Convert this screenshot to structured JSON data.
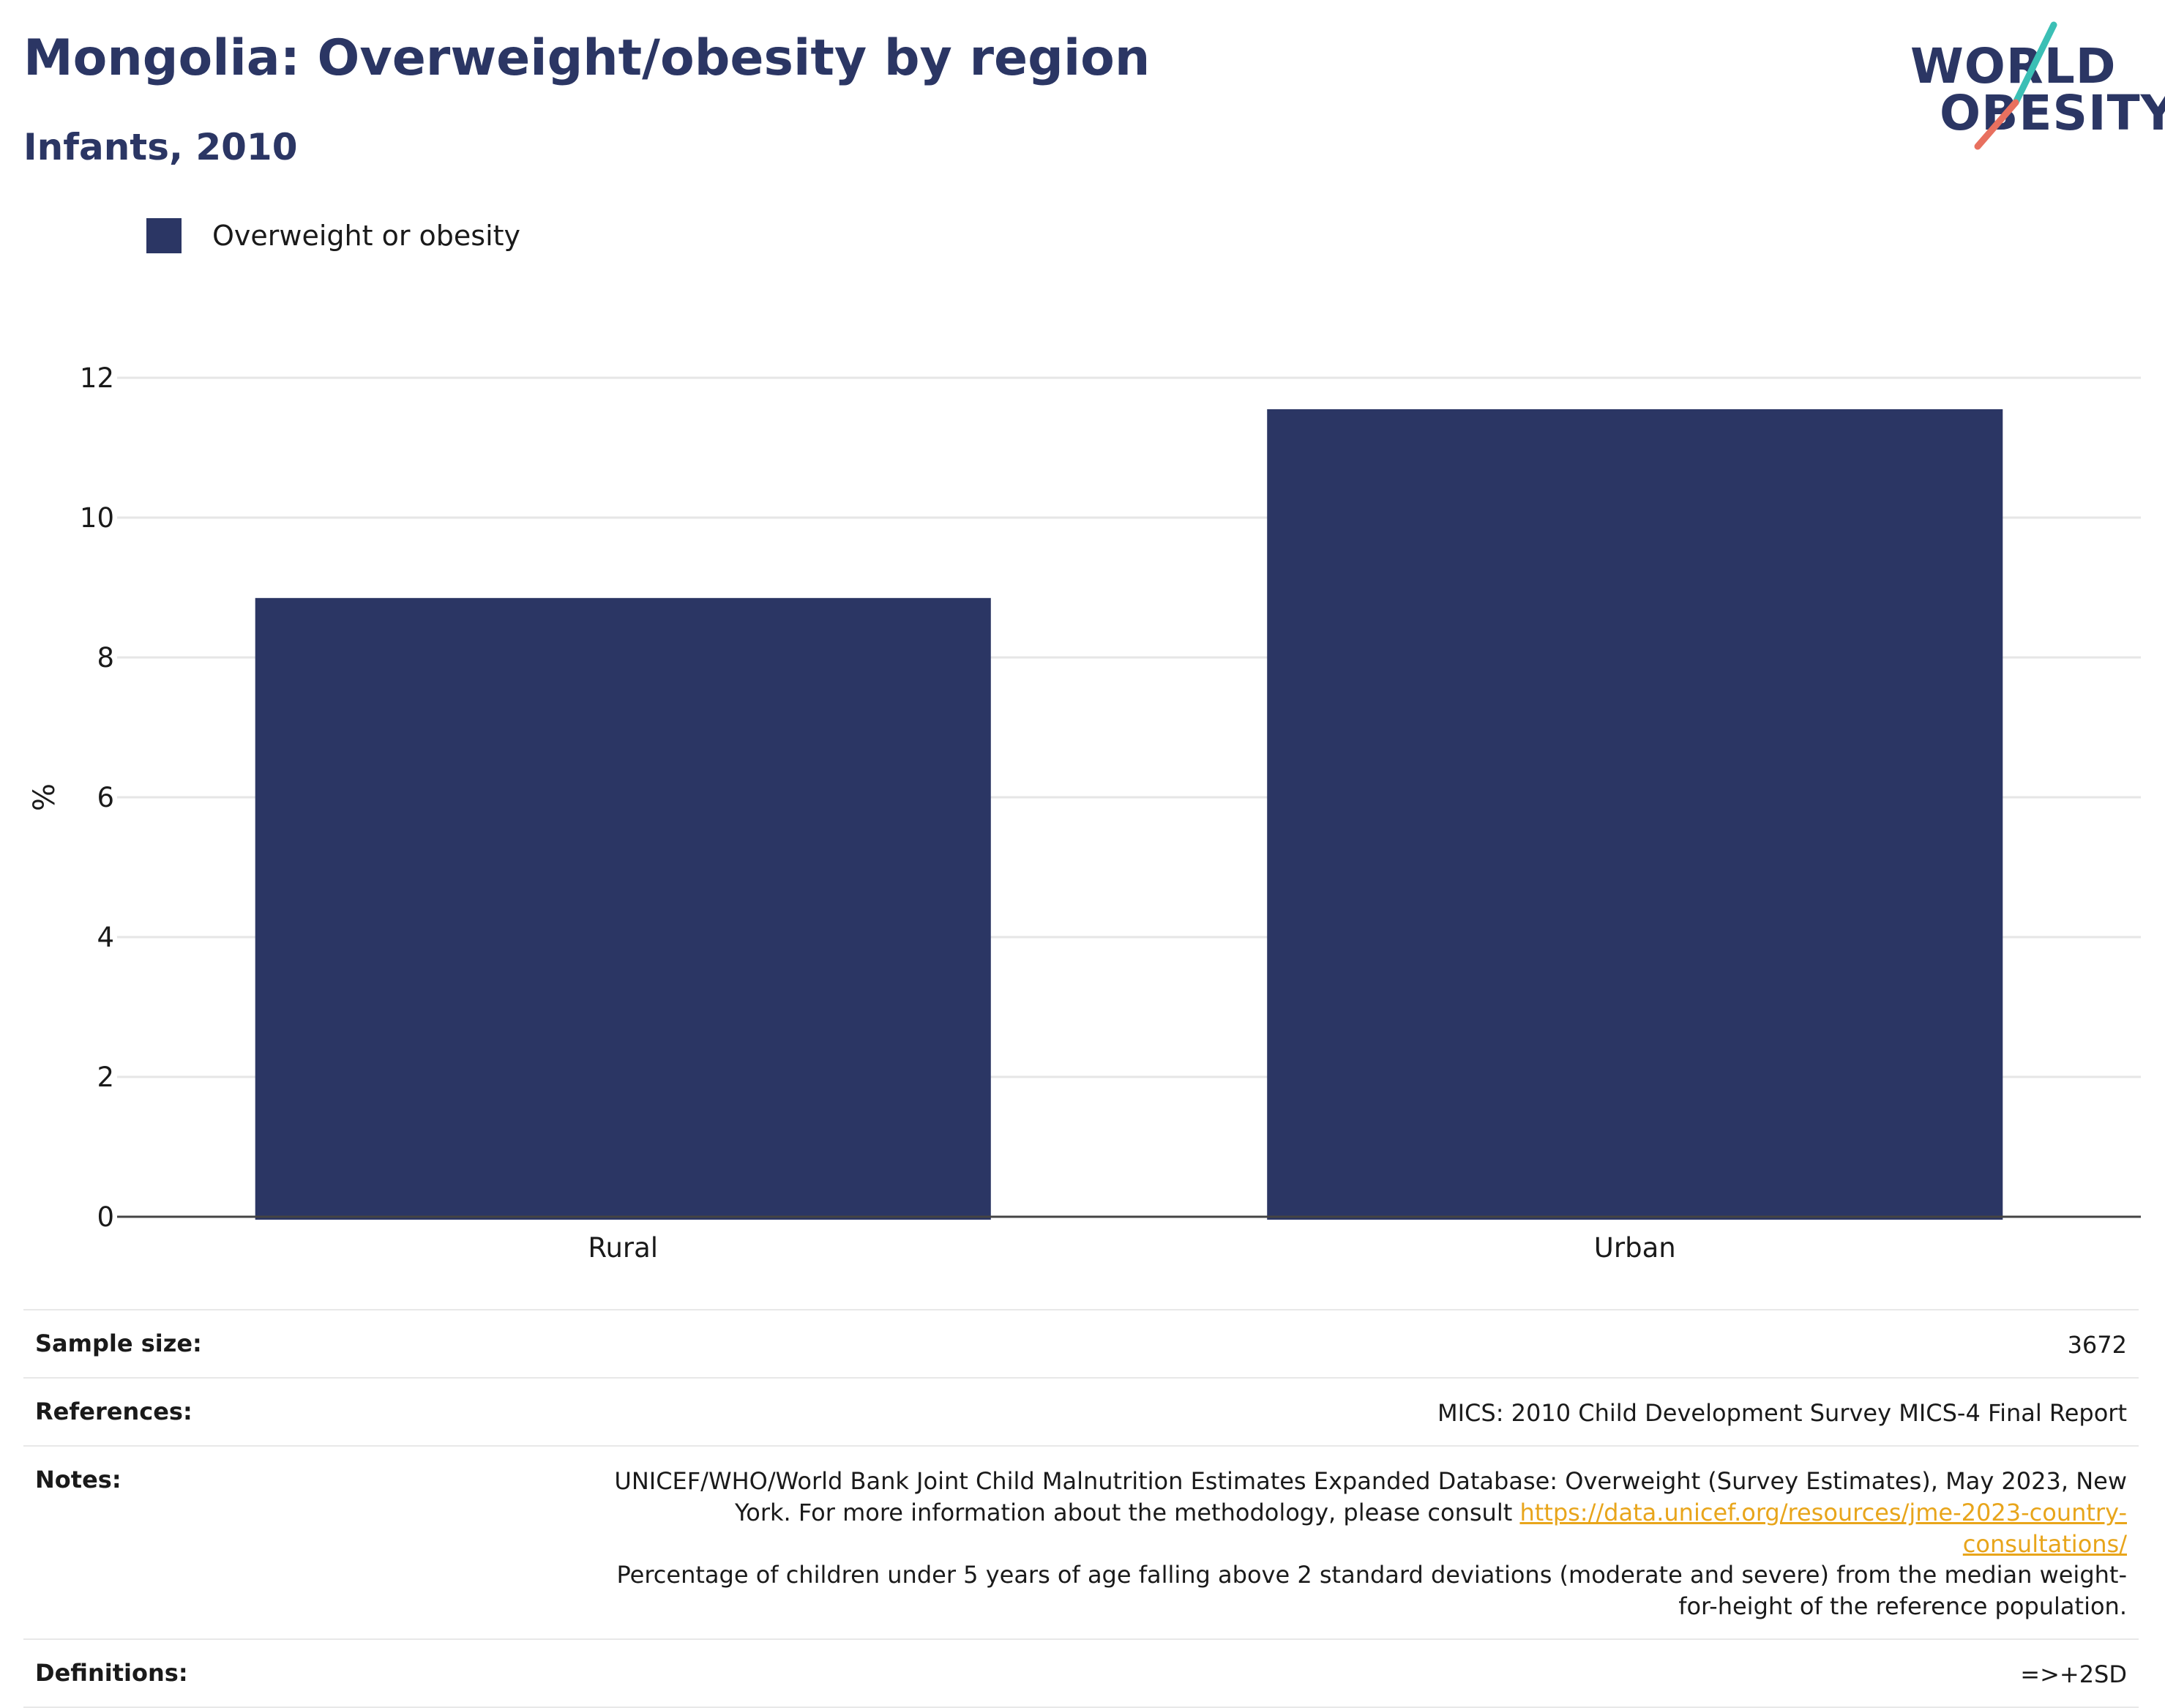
{
  "header": {
    "title": "Mongolia: Overweight/obesity by region",
    "subtitle": "Infants, 2010"
  },
  "logo": {
    "line1": "WORLD",
    "line2": "OBESITY",
    "accent_teal": "#3bbfb5",
    "accent_coral": "#e8705f"
  },
  "legend": {
    "label": "Overweight or obesity",
    "color": "#2b3664"
  },
  "chart_data": {
    "type": "bar",
    "categories": [
      "Rural",
      "Urban"
    ],
    "series": [
      {
        "name": "Overweight or obesity",
        "values": [
          8.85,
          11.55
        ],
        "color": "#2b3664"
      }
    ],
    "xlabel": "",
    "ylabel": "%",
    "ylim": [
      0,
      12
    ],
    "yticks": [
      0,
      2,
      4,
      6,
      8,
      10,
      12
    ],
    "grid": true,
    "legend_position": "top-left"
  },
  "meta": {
    "sample_size": {
      "label": "Sample size:",
      "value": "3672"
    },
    "references": {
      "label": "References:",
      "value": "MICS: 2010 Child Development Survey MICS-4 Final Report"
    },
    "notes": {
      "label": "Notes:",
      "text1": "UNICEF/WHO/World Bank Joint Child Malnutrition Estimates Expanded Database: Overweight (Survey Estimates), May 2023, New York. For more information about the methodology, please consult ",
      "link": "https://data.unicef.org/resources/jme-2023-country-consultations/",
      "text2": "Percentage of children under 5 years of age falling above 2 standard deviations (moderate and severe) from the median weight-for-height of the reference population."
    },
    "definitions": {
      "label": "Definitions:",
      "value": "=>+2SD"
    }
  }
}
